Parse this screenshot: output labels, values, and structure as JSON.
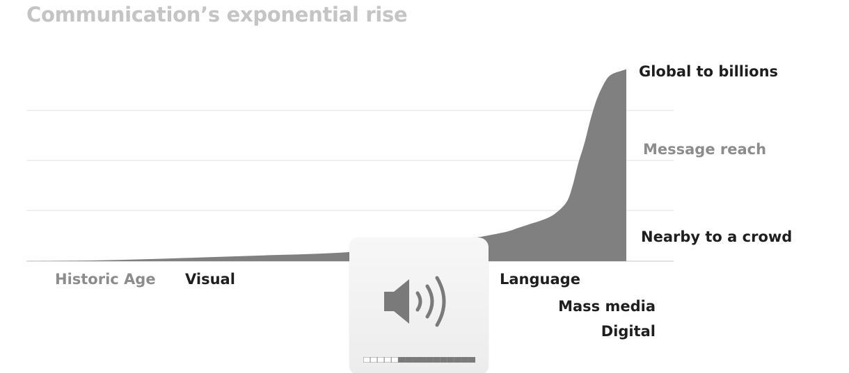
{
  "chart_data": {
    "type": "area",
    "title": "Communication’s exponential rise",
    "ylabel": "Message reach",
    "y_level_labels": {
      "top": "Global to billions",
      "bottom": "Nearby to a crowd"
    },
    "x_labels": {
      "axis": "Historic Age",
      "eras": [
        "Visual",
        "Language",
        "Mass media",
        "Digital"
      ]
    },
    "grid": true,
    "ylim": [
      0,
      100
    ],
    "xlim": [
      0,
      100
    ],
    "x": [
      0,
      10,
      20,
      30,
      40,
      50,
      60,
      70,
      75,
      80,
      82,
      84,
      86,
      88,
      90,
      91,
      92,
      93,
      94,
      95,
      96,
      97,
      98,
      99,
      100
    ],
    "values": [
      0,
      0.3,
      1,
      2,
      3,
      4,
      6,
      9,
      12,
      15,
      17,
      19,
      21,
      24,
      30,
      38,
      50,
      60,
      72,
      82,
      89,
      94,
      96,
      97,
      98
    ]
  },
  "volume_hud": {
    "icon": "speaker-volume-icon",
    "level": 0.32,
    "segments": 16
  },
  "colors": {
    "area": "#808080",
    "grid": "#e6e6e6",
    "title": "#c4c4c4",
    "label_dark": "#1e1e1e",
    "label_muted": "#8c8c8c"
  }
}
